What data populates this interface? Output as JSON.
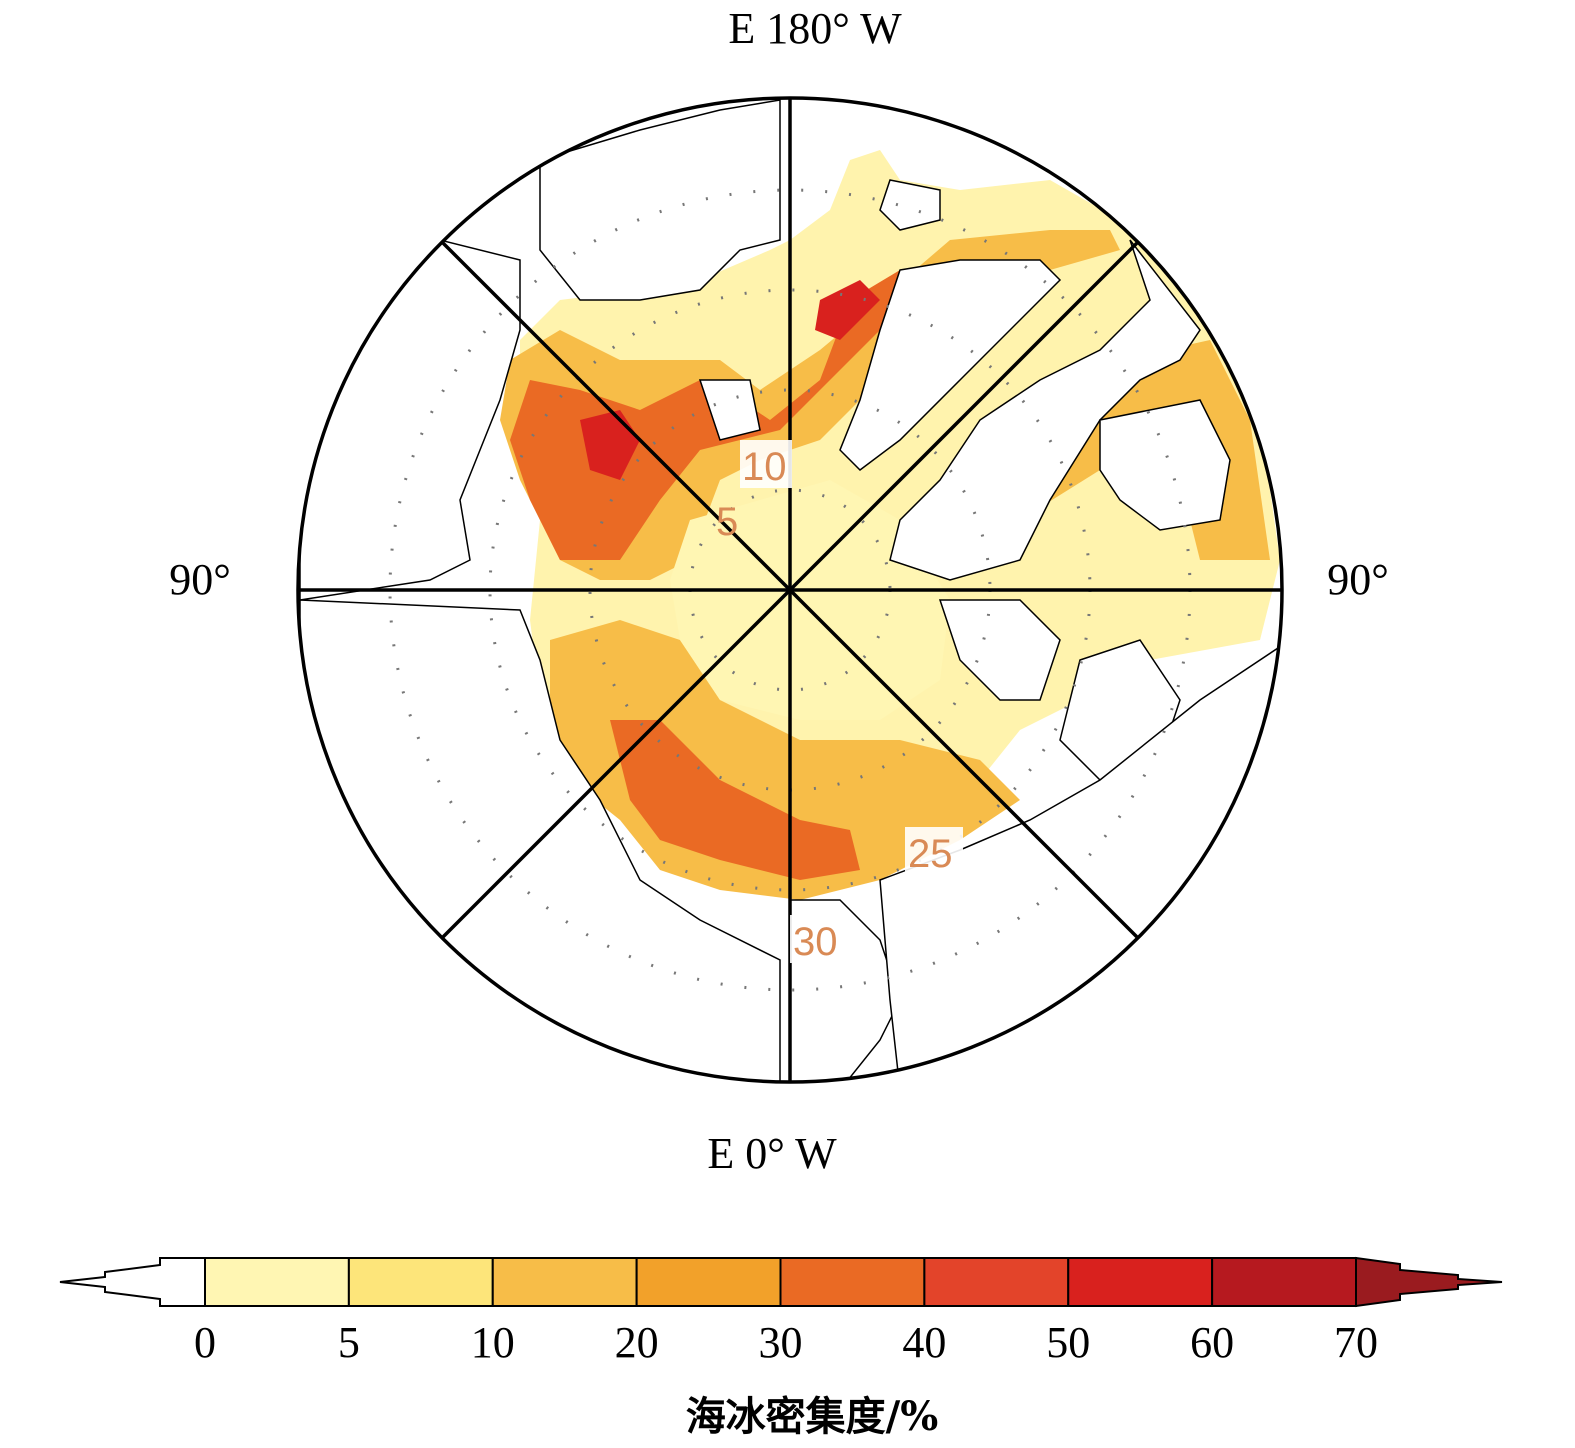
{
  "map": {
    "title_top": "E 180° W",
    "title_bottom": "E 0° W",
    "label_left": "90°",
    "label_right": "90°",
    "contour_labels": [
      "10",
      "5",
      "25",
      "30"
    ]
  },
  "colorbar": {
    "title": "海冰密集度/%",
    "ticks": [
      "0",
      "5",
      "10",
      "20",
      "30",
      "40",
      "50",
      "60",
      "70"
    ],
    "colors": [
      "#fff6b3",
      "#fde57a",
      "#f7bd48",
      "#f2a12a",
      "#ea6a24",
      "#e3442a",
      "#d9211e",
      "#b6191f"
    ],
    "under_color": "#ffffff",
    "over_color": "#9a1b1f"
  }
}
